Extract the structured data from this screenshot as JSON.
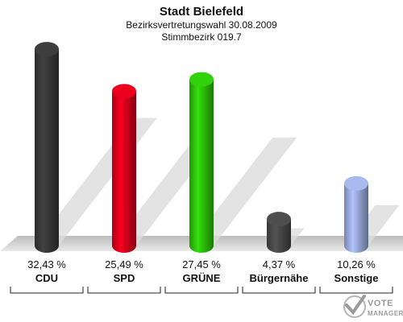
{
  "chart_data": {
    "type": "bar",
    "title": "Stadt Bielefeld",
    "subtitle_1": "Bezirksvertretungswahl 30.08.2009",
    "subtitle_2": "Stimmbezirk 019.7",
    "categories": [
      "CDU",
      "SPD",
      "GRÜNE",
      "Bürgernähe",
      "Sonstige"
    ],
    "values": [
      32.43,
      25.49,
      27.45,
      4.37,
      10.26
    ],
    "value_labels": [
      "32,43 %",
      "25,49 %",
      "27,45 %",
      "4,37 %",
      "10,26 %"
    ],
    "colors": [
      "#3a3a3a",
      "#e0001c",
      "#2ec80a",
      "#4a4a4a",
      "#9fb0e2"
    ],
    "ylim": [
      0,
      35
    ],
    "grid": false,
    "legend": "none"
  },
  "logo": {
    "line1": "VOTE",
    "line2": "MANAGER"
  }
}
